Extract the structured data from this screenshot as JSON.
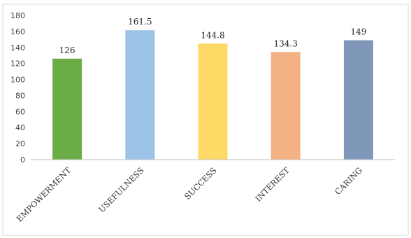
{
  "chart_data": {
    "type": "bar",
    "title": "",
    "xlabel": "",
    "ylabel": "",
    "categories": [
      "EMPOWERMENT",
      "USEFULNESS",
      "SUCCESS",
      "INTEREST",
      "CARING"
    ],
    "values": [
      126,
      161.5,
      144.8,
      134.3,
      149
    ],
    "value_labels": [
      "126",
      "161.5",
      "144.8",
      "134.3",
      "149"
    ],
    "colors": [
      "#6aac45",
      "#9dc3e6",
      "#ffd966",
      "#f4b183",
      "#7f97b8"
    ],
    "ylim": [
      0,
      180
    ],
    "yticks": [
      0,
      20,
      40,
      60,
      80,
      100,
      120,
      140,
      160,
      180
    ],
    "grid": false,
    "legend": "none"
  }
}
